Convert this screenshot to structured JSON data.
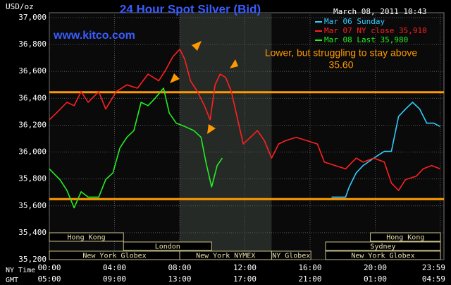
{
  "chart_data": {
    "type": "line",
    "title": "24 Hour Spot Silver (Bid)",
    "y_unit": "USD/oz",
    "timestamp": "March 08, 2011 10:43",
    "watermark": "www.kitco.com",
    "annotation": [
      "Lower, but struggling to stay above",
      "35.60"
    ],
    "x_row_labels": [
      "NY Time",
      "GMT"
    ],
    "xlim": [
      0,
      24
    ],
    "xticks": [
      {
        "value": 0,
        "label": "00:00"
      },
      {
        "value": 4,
        "label": "04:00"
      },
      {
        "value": 8,
        "label": "08:00"
      },
      {
        "value": 12,
        "label": "12:00"
      },
      {
        "value": 16,
        "label": "16:00"
      },
      {
        "value": 20,
        "label": "20:00"
      },
      {
        "value": 23.98,
        "label": "23:59"
      }
    ],
    "gmt_labels": [
      "05:00",
      "09:00",
      "13:00",
      "17:00",
      "21:00",
      "01:00",
      "04:59"
    ],
    "ylim": [
      35200,
      37000
    ],
    "yticks": [
      {
        "value": 35200,
        "label": "35,200"
      },
      {
        "value": 35400,
        "label": "35,400"
      },
      {
        "value": 35600,
        "label": "35,600"
      },
      {
        "value": 35800,
        "label": "35,800"
      },
      {
        "value": 36000,
        "label": "36,000"
      },
      {
        "value": 36200,
        "label": "36,200"
      },
      {
        "value": 36400,
        "label": "36,400"
      },
      {
        "value": 36600,
        "label": "36,600"
      },
      {
        "value": 36800,
        "label": "36,800"
      },
      {
        "value": 37000,
        "label": "37,000"
      }
    ],
    "grid": true,
    "highlight_xrange": [
      8,
      13.64
    ],
    "reference_lines": [
      36445,
      35650
    ],
    "reference_color": "#ff9900",
    "sessions": [
      {
        "label": "Hong Kong",
        "start": 0,
        "end": 4.55,
        "row": 0
      },
      {
        "label": "Hong Kong",
        "start": 19.7,
        "end": 24,
        "row": 0
      },
      {
        "label": "London",
        "start": 4.55,
        "end": 9.96,
        "row": 1
      },
      {
        "label": "Sydney",
        "start": 16.95,
        "end": 24,
        "row": 1
      },
      {
        "label": "New York Globex",
        "start": 0,
        "end": 8,
        "row": 2
      },
      {
        "label": "New York NYMEX",
        "start": 8,
        "end": 13.64,
        "row": 2
      },
      {
        "label": "NY Globex",
        "start": 13.64,
        "end": 16.05,
        "row": 2
      },
      {
        "label": "New York Globex",
        "start": 16.95,
        "end": 24,
        "row": 2
      }
    ],
    "series": [
      {
        "name": "Mar 06 Sunday",
        "color": "#33ccff",
        "x": [
          17.32,
          18.18,
          18.4,
          18.83,
          19.26,
          19.91,
          20.56,
          20.99,
          21.43,
          21.86,
          22.29,
          22.73,
          23.16,
          23.59,
          23.98
        ],
        "values": [
          35665,
          35665,
          35740,
          35845,
          35900,
          35955,
          36005,
          36005,
          36265,
          36320,
          36370,
          36320,
          36215,
          36215,
          36190
        ]
      },
      {
        "name": "Mar 07 NY close 35,910",
        "color": "#ff2020",
        "x": [
          0,
          0.43,
          1.08,
          1.52,
          1.95,
          2.38,
          3.03,
          3.46,
          4.11,
          4.76,
          5.41,
          6.06,
          6.71,
          7.14,
          7.58,
          8.01,
          8.31,
          8.66,
          9.09,
          9.52,
          9.87,
          10.17,
          10.48,
          10.82,
          11.17,
          11.47,
          11.9,
          12.34,
          12.77,
          13.2,
          13.64,
          14.07,
          14.5,
          15.15,
          15.8,
          16.45,
          16.88,
          17.53,
          18.18,
          18.83,
          19.26,
          19.91,
          20.56,
          20.99,
          21.43,
          21.86,
          22.51,
          22.94,
          23.46,
          23.98
        ],
        "values": [
          36240,
          36290,
          36370,
          36345,
          36450,
          36370,
          36450,
          36320,
          36450,
          36500,
          36475,
          36580,
          36530,
          36610,
          36710,
          36765,
          36690,
          36530,
          36450,
          36345,
          36240,
          36500,
          36580,
          36555,
          36450,
          36290,
          36060,
          36110,
          36160,
          36085,
          35955,
          36060,
          36085,
          36110,
          36085,
          36060,
          35925,
          35900,
          35875,
          35955,
          35925,
          35955,
          35925,
          35770,
          35715,
          35795,
          35820,
          35875,
          35900,
          35875
        ]
      },
      {
        "name": "Mar 08 Last 35,980",
        "color": "#22ee22",
        "x": [
          0,
          0.65,
          1.08,
          1.52,
          1.95,
          2.38,
          3.03,
          3.46,
          3.9,
          4.33,
          4.76,
          5.19,
          5.63,
          6.06,
          6.49,
          7.01,
          7.36,
          7.79,
          8.31,
          8.87,
          9.31,
          9.61,
          9.96,
          10.3,
          10.61
        ],
        "values": [
          35875,
          35795,
          35715,
          35585,
          35705,
          35665,
          35665,
          35795,
          35845,
          36030,
          36110,
          36160,
          36370,
          36345,
          36400,
          36475,
          36290,
          36215,
          36190,
          36160,
          36110,
          35925,
          35740,
          35900,
          35955
        ]
      }
    ]
  }
}
